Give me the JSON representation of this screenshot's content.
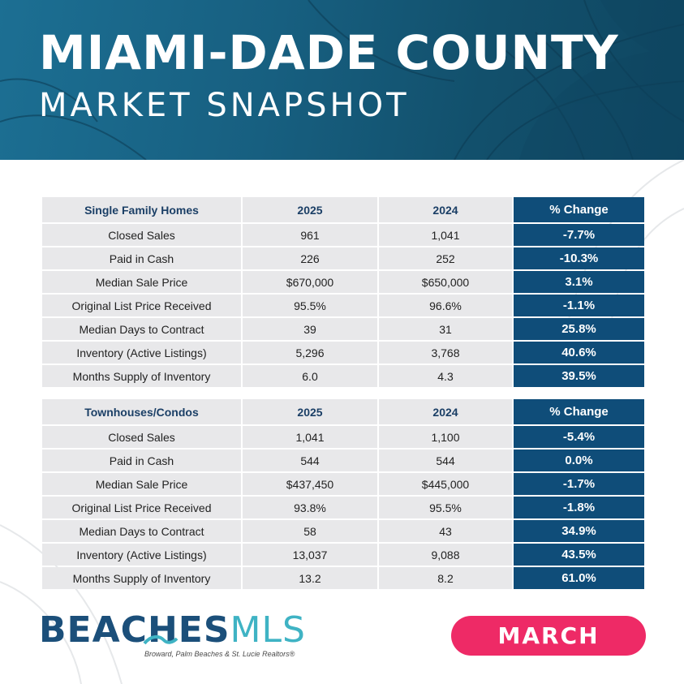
{
  "header": {
    "title": "MIAMI-DADE COUNTY",
    "subtitle": "MARKET SNAPSHOT"
  },
  "colors": {
    "header_blue": "#175f80",
    "change_blue": "#0f4d79",
    "cell_gray": "#e8e8ea",
    "month_pink": "#ee2a66",
    "logo_navy": "#1b4f7a",
    "logo_teal": "#3fb3c4"
  },
  "tables": [
    {
      "headers": [
        "Single Family Homes",
        "2025",
        "2024",
        "% Change"
      ],
      "rows": [
        [
          "Closed Sales",
          "961",
          "1,041",
          "-7.7%"
        ],
        [
          "Paid in Cash",
          "226",
          "252",
          "-10.3%"
        ],
        [
          "Median Sale Price",
          "$670,000",
          "$650,000",
          "3.1%"
        ],
        [
          "Original List Price Received",
          "95.5%",
          "96.6%",
          "-1.1%"
        ],
        [
          "Median Days to Contract",
          "39",
          "31",
          "25.8%"
        ],
        [
          "Inventory (Active Listings)",
          "5,296",
          "3,768",
          "40.6%"
        ],
        [
          "Months Supply of Inventory",
          "6.0",
          "4.3",
          "39.5%"
        ]
      ]
    },
    {
      "headers": [
        "Townhouses/Condos",
        "2025",
        "2024",
        "% Change"
      ],
      "rows": [
        [
          "Closed Sales",
          "1,041",
          "1,100",
          "-5.4%"
        ],
        [
          "Paid in Cash",
          "544",
          "544",
          "0.0%"
        ],
        [
          "Median Sale Price",
          "$437,450",
          "$445,000",
          "-1.7%"
        ],
        [
          "Original List Price Received",
          "93.8%",
          "95.5%",
          "-1.8%"
        ],
        [
          "Median Days to Contract",
          "58",
          "43",
          "34.9%"
        ],
        [
          "Inventory (Active Listings)",
          "13,037",
          "9,088",
          "43.5%"
        ],
        [
          "Months Supply of Inventory",
          "13.2",
          "8.2",
          "61.0%"
        ]
      ]
    }
  ],
  "footer": {
    "logo_main": "BEACHES",
    "logo_mls": "MLS",
    "logo_tagline": "Broward, Palm Beaches & St. Lucie Realtors®",
    "month": "MARCH",
    "logo_icon": "wave-icon"
  }
}
